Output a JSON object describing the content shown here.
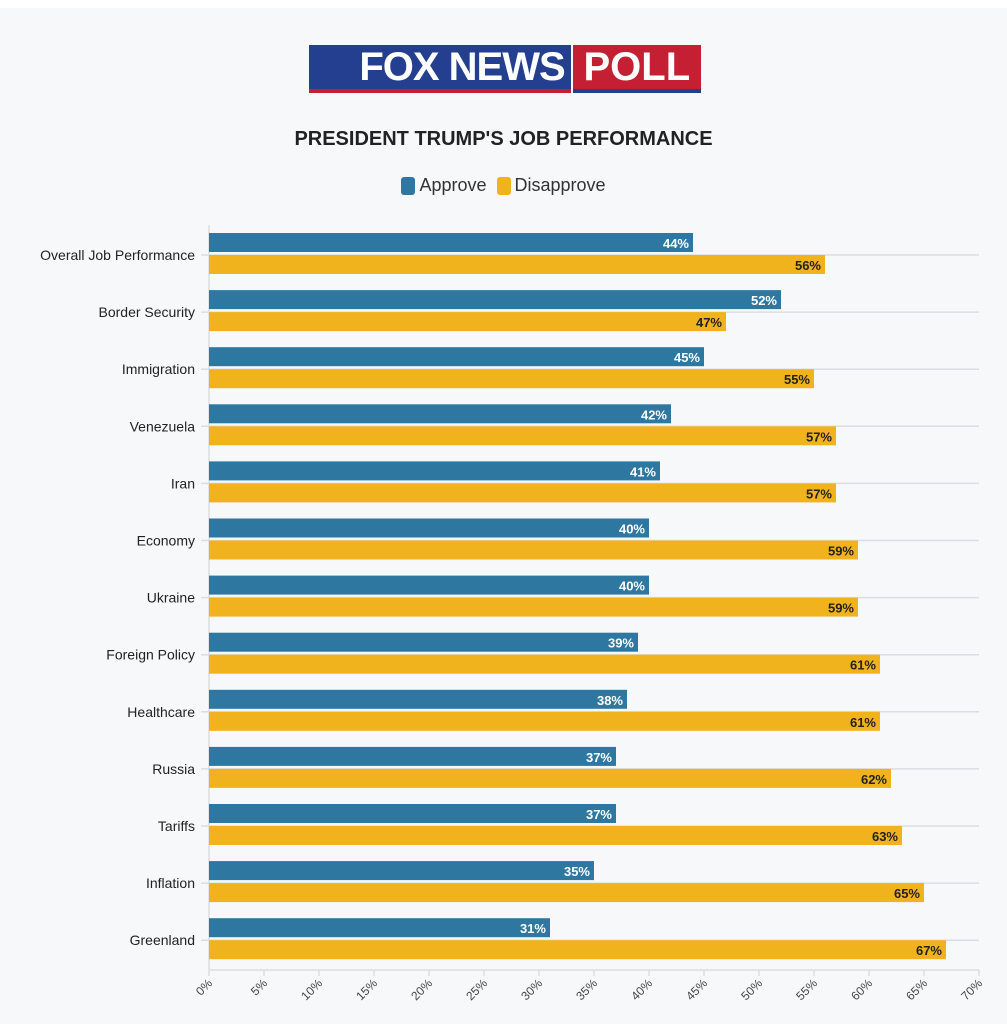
{
  "logo": {
    "left_text": "FOX NEWS",
    "right_text": "POLL"
  },
  "chart_data": {
    "type": "bar",
    "orientation": "horizontal",
    "title": "PRESIDENT TRUMP'S JOB PERFORMANCE",
    "categories": [
      "Overall Job Performance",
      "Border Security",
      "Immigration",
      "Venezuela",
      "Iran",
      "Economy",
      "Ukraine",
      "Foreign Policy",
      "Healthcare",
      "Russia",
      "Tariffs",
      "Inflation",
      "Greenland"
    ],
    "series": [
      {
        "name": "Approve",
        "color": "#2e77a0",
        "values": [
          44,
          52,
          45,
          42,
          41,
          40,
          40,
          39,
          38,
          37,
          37,
          35,
          31
        ]
      },
      {
        "name": "Disapprove",
        "color": "#f0b31e",
        "values": [
          56,
          47,
          55,
          57,
          57,
          59,
          59,
          61,
          61,
          62,
          63,
          65,
          67
        ]
      }
    ],
    "xlim": [
      0,
      70
    ],
    "xticks": [
      "0%",
      "5%",
      "10%",
      "15%",
      "20%",
      "25%",
      "30%",
      "35%",
      "40%",
      "45%",
      "50%",
      "55%",
      "60%",
      "65%",
      "70%"
    ],
    "legend": "top-center",
    "grid": true
  }
}
